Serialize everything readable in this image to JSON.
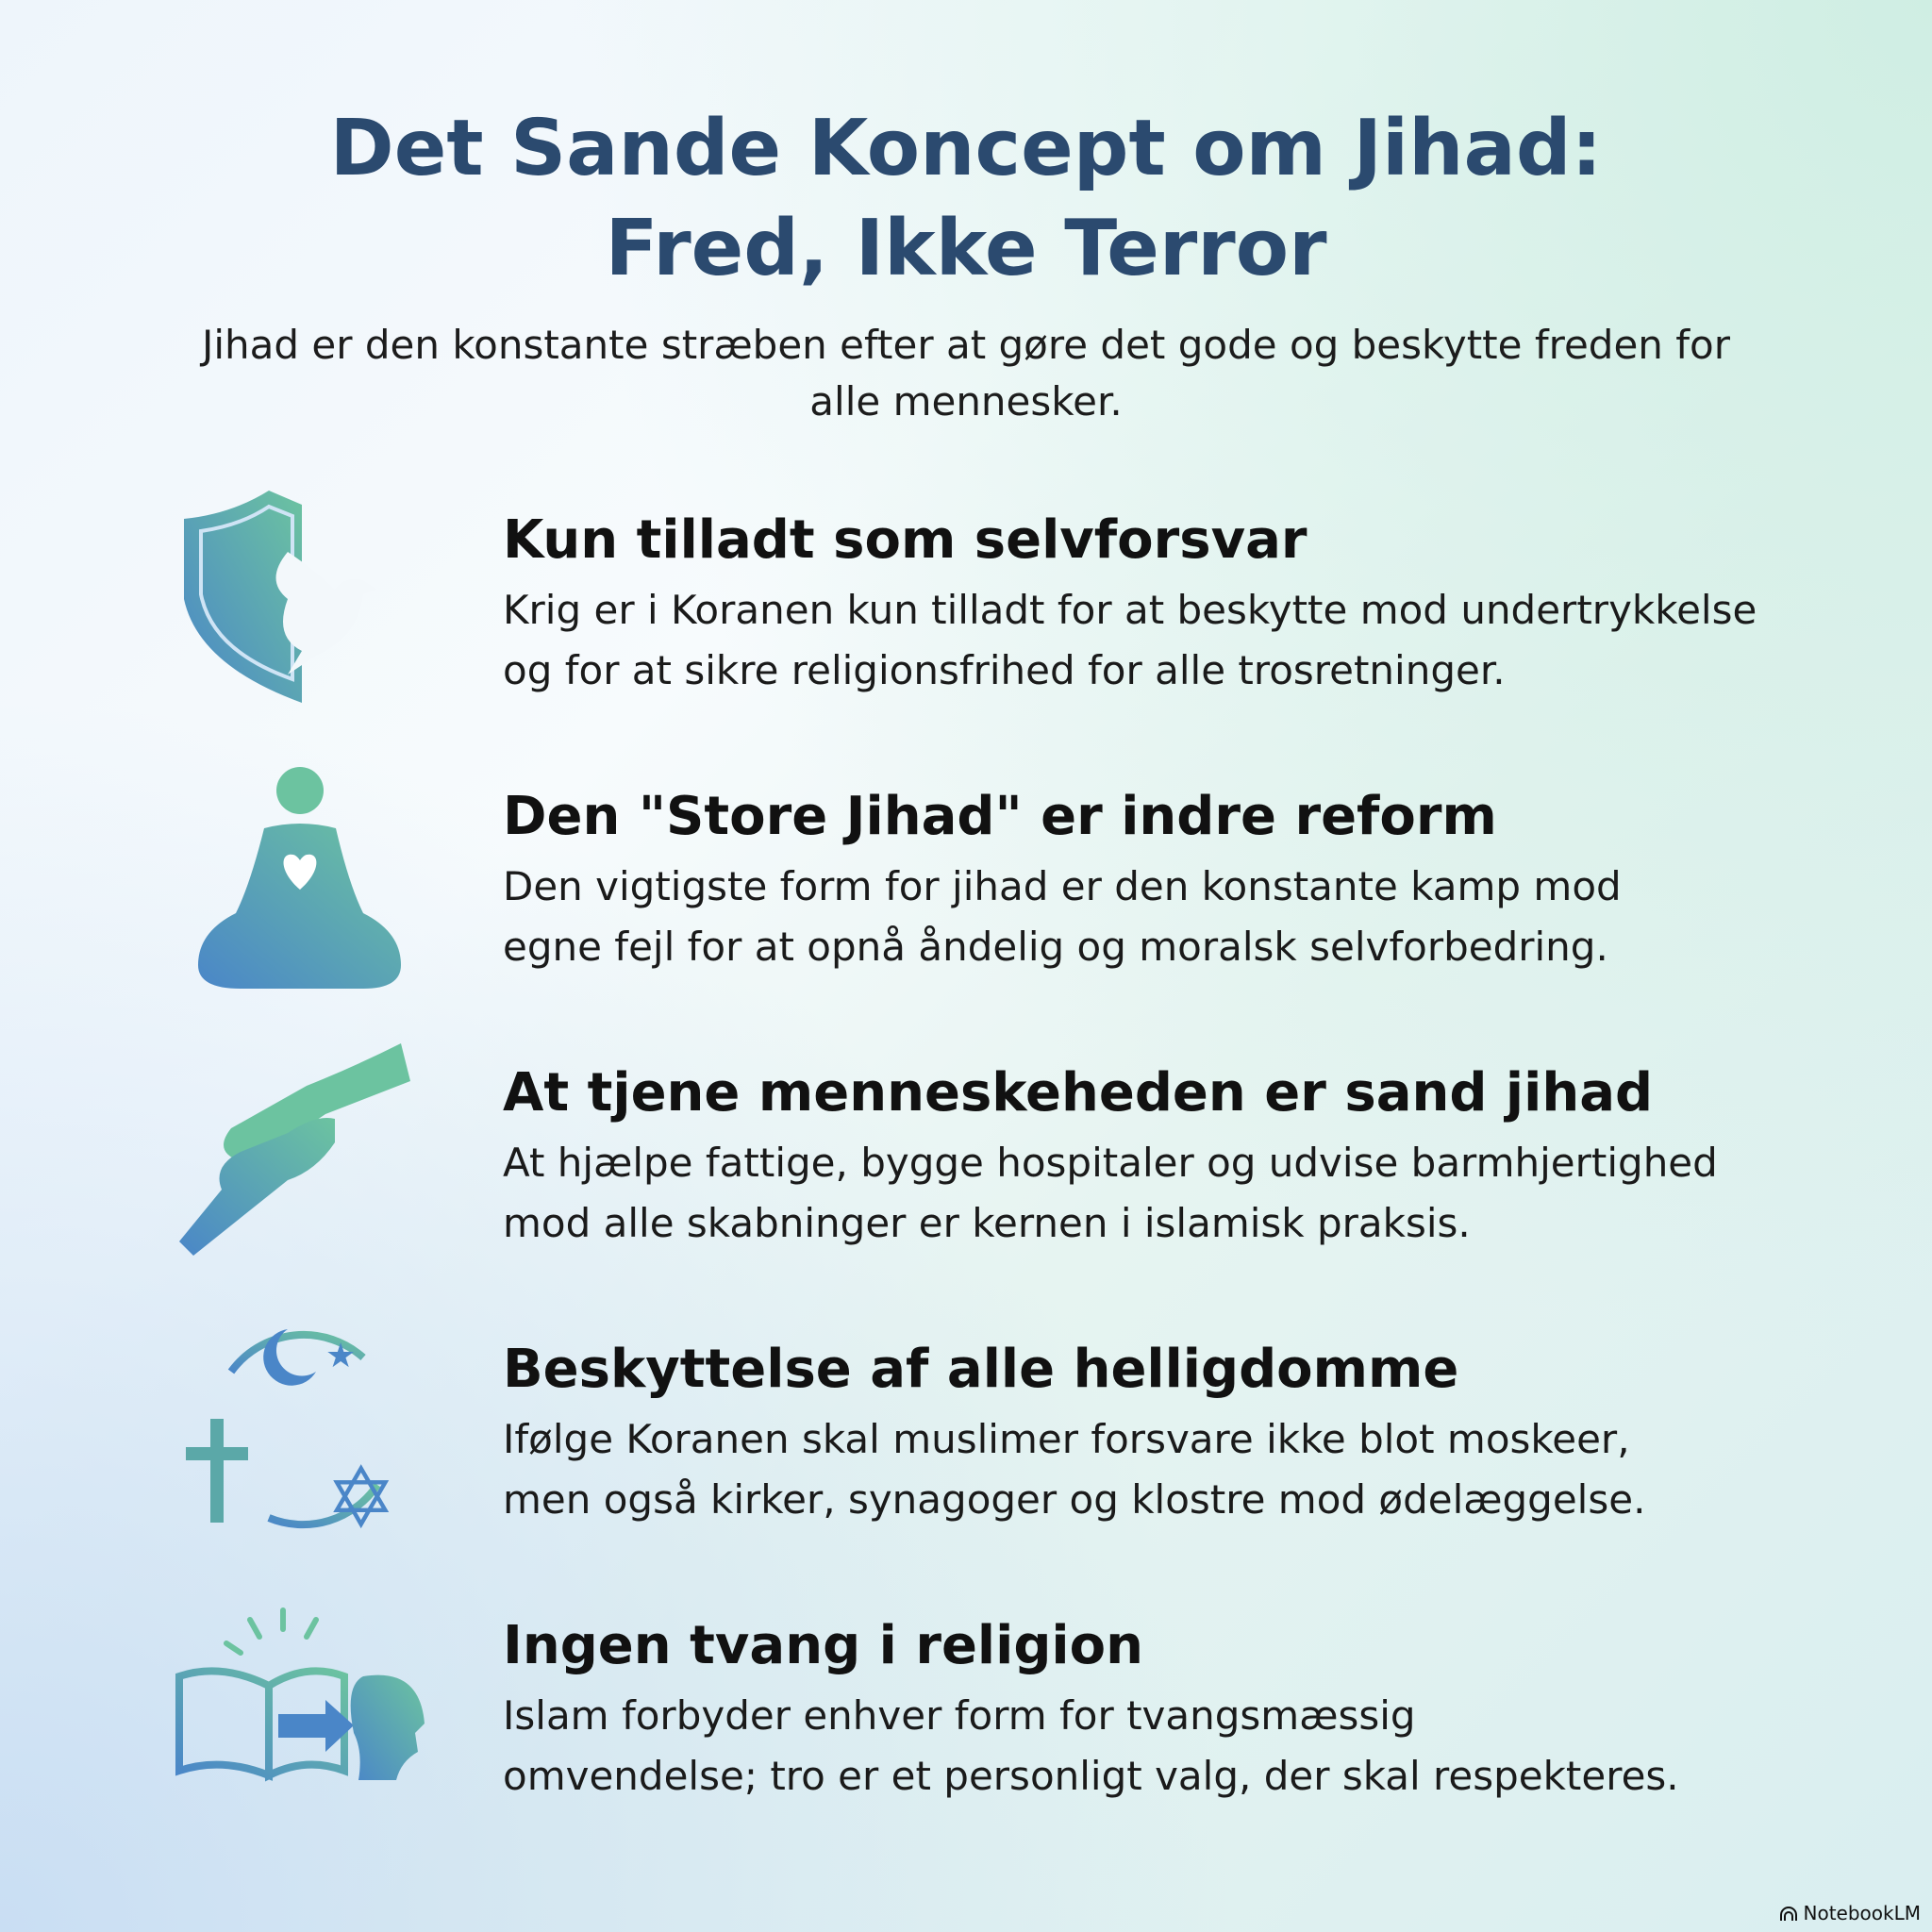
{
  "title": {
    "line1": "Det Sande Koncept om Jihad:",
    "line2": "Fred, Ikke Terror"
  },
  "subtitle": "Jihad er den konstante stræben efter at gøre det gode og beskytte freden for alle mennesker.",
  "items": [
    {
      "icon": "shield-dove-icon",
      "heading": "Kun tilladt som selvforsvar",
      "line1": "Krig er i Koranen kun tilladt for at beskytte mod undertrykkelse",
      "line2": "og for at sikre religionsfrihed for alle trosretninger."
    },
    {
      "icon": "meditation-heart-icon",
      "heading": "Den \"Store Jihad\" er indre reform",
      "line1": "Den vigtigste form for jihad er den konstante kamp mod",
      "line2": "egne fejl for at opnå åndelig og moralsk selvforbedring."
    },
    {
      "icon": "helping-hands-icon",
      "heading": "At tjene menneskeheden er sand jihad",
      "line1": "At hjælpe fattige, bygge hospitaler og udvise barmhjertighed",
      "line2": "mod alle skabninger er kernen i islamisk praksis."
    },
    {
      "icon": "interfaith-symbols-icon",
      "heading": "Beskyttelse af alle helligdomme",
      "line1": "Ifølge Koranen skal muslimer forsvare ikke blot moskeer,",
      "line2": "men også kirker, synagoger og klostre mod ødelæggelse."
    },
    {
      "icon": "book-to-mind-icon",
      "heading": "Ingen tvang i religion",
      "line1": "Islam forbyder enhver form for tvangsmæssig",
      "line2": "omvendelse; tro er et personligt valg, der skal respekteres."
    }
  ],
  "brand": "NotebookLM",
  "colors": {
    "title": "#2b4a6f",
    "icon_blue": "#4a86c8",
    "icon_green": "#6cc3a0"
  }
}
